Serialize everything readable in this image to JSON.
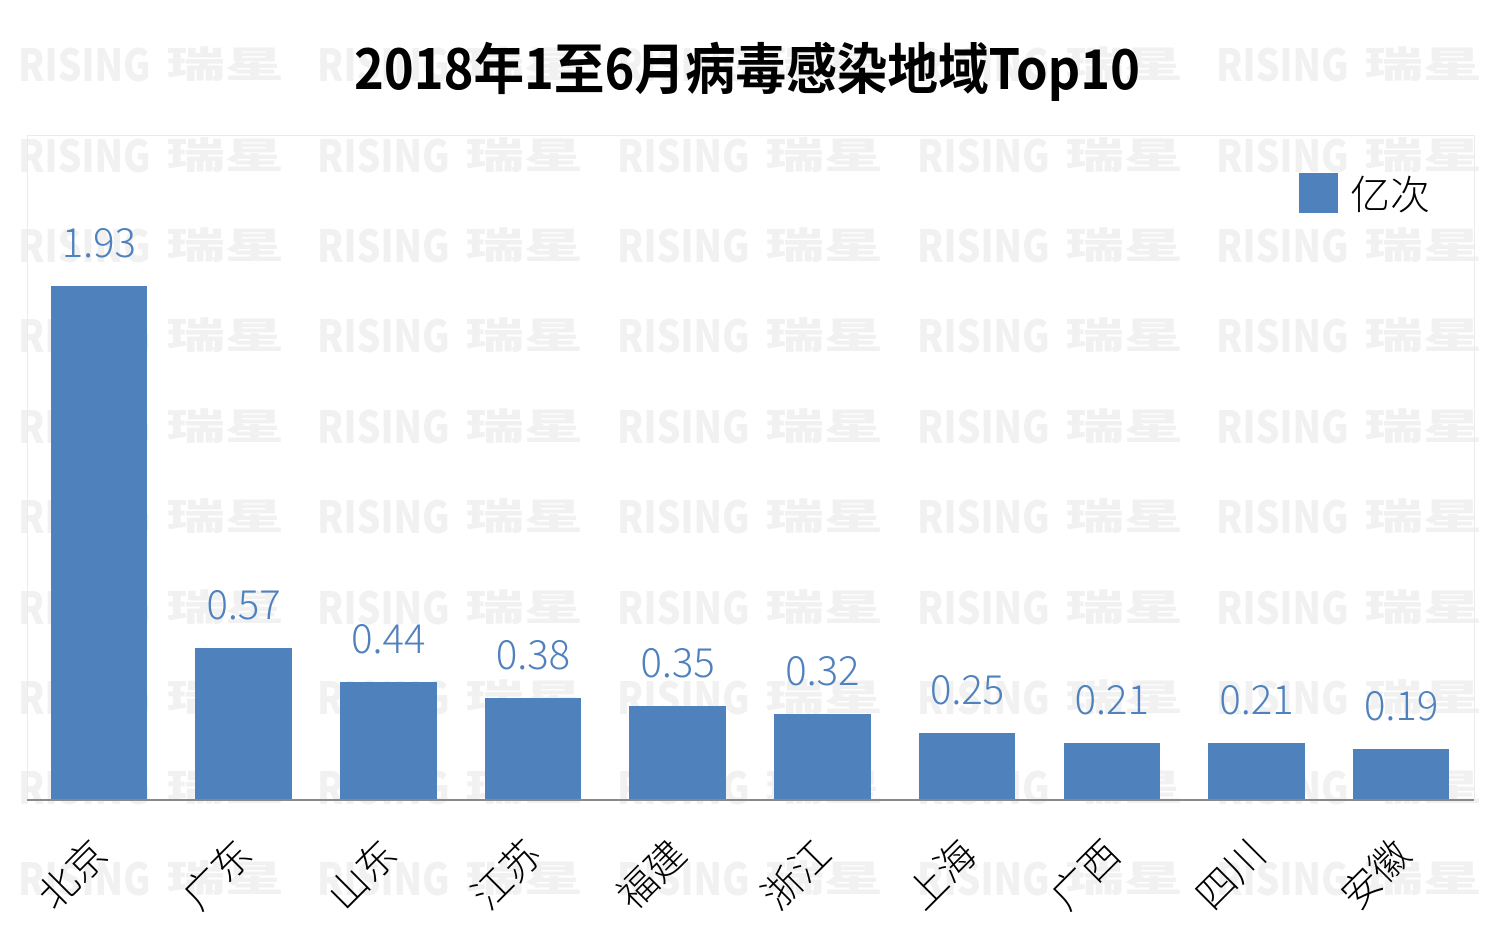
{
  "chart_data": {
    "type": "bar",
    "title": "2018年1至6月病毒感染地域Top10",
    "categories": [
      "北京",
      "广东",
      "山东",
      "江苏",
      "福建",
      "浙江",
      "上海",
      "广西",
      "四川",
      "安徽"
    ],
    "values": [
      1.93,
      0.57,
      0.44,
      0.38,
      0.35,
      0.32,
      0.25,
      0.21,
      0.21,
      0.19
    ],
    "data_labels": [
      "1.93",
      "0.57",
      "0.44",
      "0.38",
      "0.35",
      "0.32",
      "0.25",
      "0.21",
      "0.21",
      "0.19"
    ],
    "series": [
      {
        "name": "亿次",
        "values": [
          1.93,
          0.57,
          0.44,
          0.38,
          0.35,
          0.32,
          0.25,
          0.21,
          0.21,
          0.19
        ]
      }
    ],
    "legend": {
      "label": "亿次",
      "position": "top-right",
      "swatch_color": "#4f81bd"
    },
    "xlabel": "",
    "ylabel": "",
    "ylim": [
      0,
      2.5
    ],
    "grid": false,
    "bar_color": "#4f81bd",
    "data_label_color": "#4f81bd",
    "axis_line_color": "#898989",
    "plot_border_color": "#ebebeb",
    "title_color": "#000000",
    "category_label_rotation_deg": -45
  },
  "watermark": {
    "latin": "RISING",
    "cjk": "瑞星",
    "color": "#f1f1f1"
  }
}
